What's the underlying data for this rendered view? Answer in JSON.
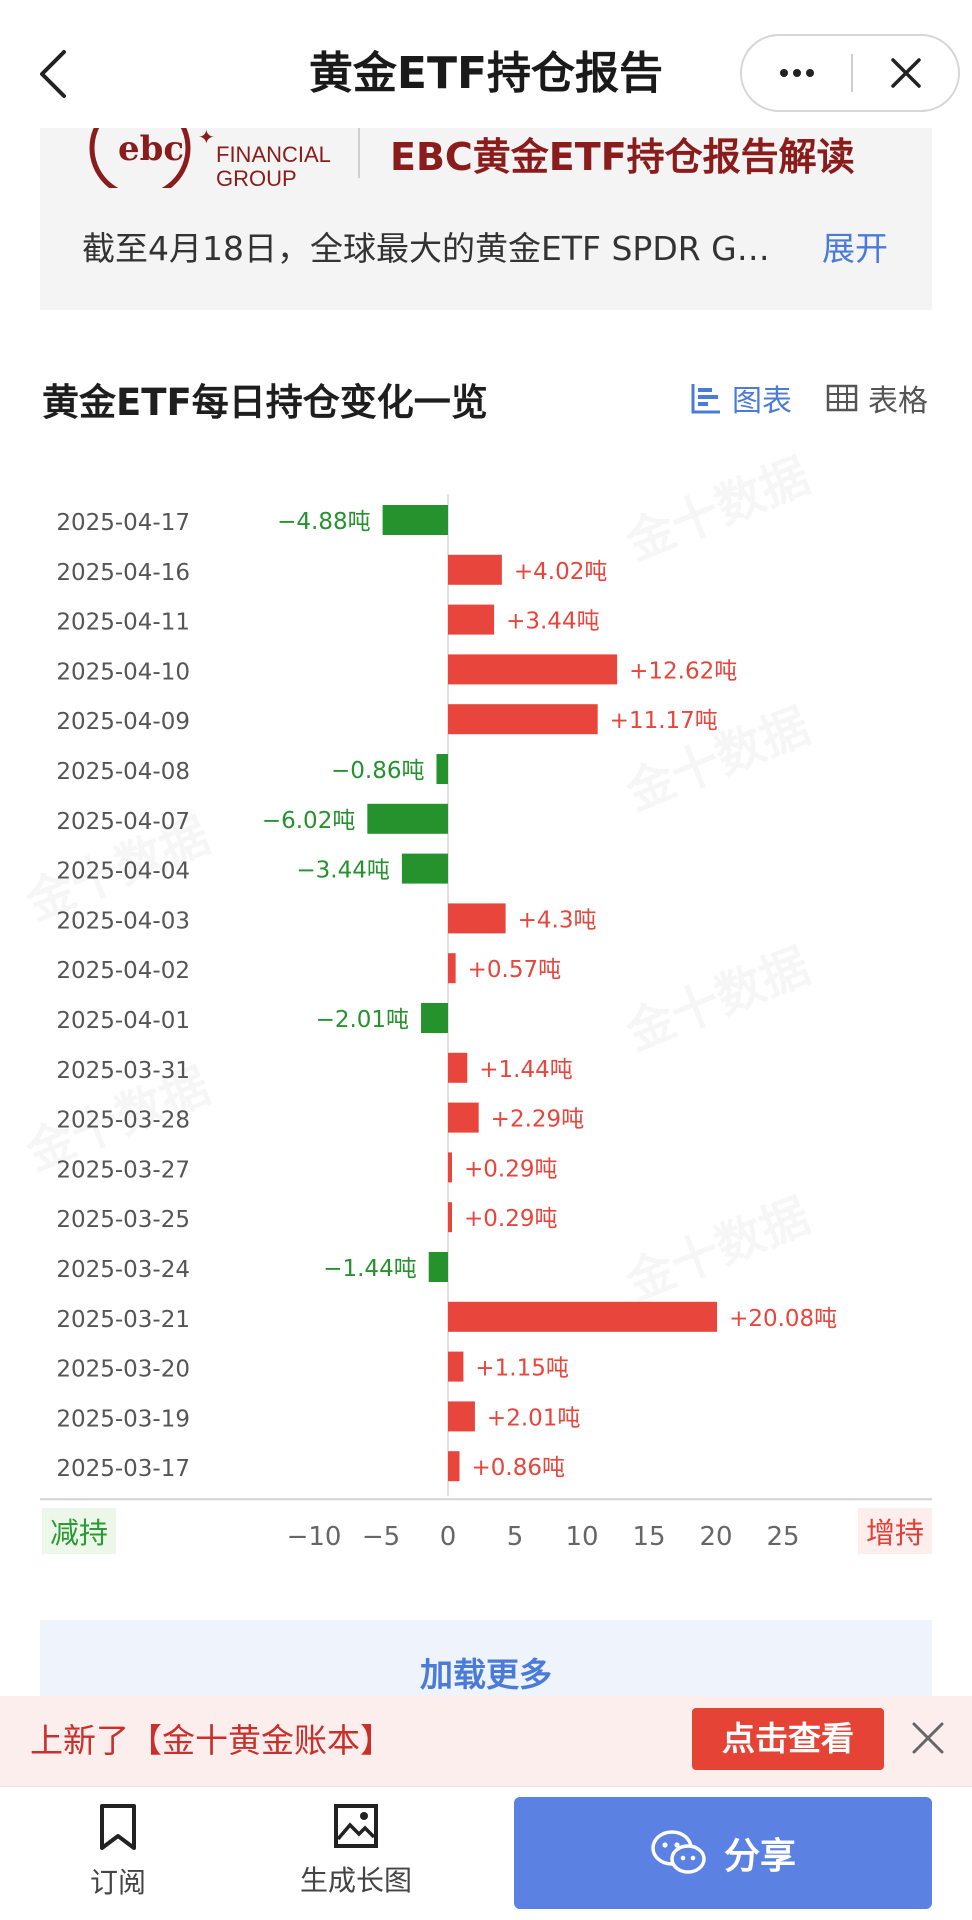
{
  "nav": {
    "title": "黄金ETF持仓报告"
  },
  "summary": {
    "logo_text_line1": "FINANCIAL",
    "logo_text_line2": "GROUP",
    "brand_title": "EBC黄金ETF持仓报告解读",
    "text": "截至4月18日，全球最大的黄金ETF SPDR G…",
    "expand_label": "展开"
  },
  "section": {
    "title": "黄金ETF每日持仓变化一览",
    "view_chart_label": "图表",
    "view_table_label": "表格"
  },
  "chart_data": {
    "type": "bar",
    "orientation": "horizontal",
    "categories": [
      "2025-04-17",
      "2025-04-16",
      "2025-04-11",
      "2025-04-10",
      "2025-04-09",
      "2025-04-08",
      "2025-04-07",
      "2025-04-04",
      "2025-04-03",
      "2025-04-02",
      "2025-04-01",
      "2025-03-31",
      "2025-03-28",
      "2025-03-27",
      "2025-03-25",
      "2025-03-24",
      "2025-03-21",
      "2025-03-20",
      "2025-03-19",
      "2025-03-17"
    ],
    "values": [
      -4.88,
      4.02,
      3.44,
      12.62,
      11.17,
      -0.86,
      -6.02,
      -3.44,
      4.3,
      0.57,
      -2.01,
      1.44,
      2.29,
      0.29,
      0.29,
      -1.44,
      20.08,
      1.15,
      2.01,
      0.86
    ],
    "labels": [
      "−4.88吨",
      "+4.02吨",
      "+3.44吨",
      "+12.62吨",
      "+11.17吨",
      "−0.86吨",
      "−6.02吨",
      "−3.44吨",
      "+4.3吨",
      "+0.57吨",
      "−2.01吨",
      "+1.44吨",
      "+2.29吨",
      "+0.29吨",
      "+0.29吨",
      "−1.44吨",
      "+20.08吨",
      "+1.15吨",
      "+2.01吨",
      "+0.86吨"
    ],
    "xticks": [
      "−10",
      "−5",
      "0",
      "5",
      "10",
      "15",
      "20",
      "25"
    ],
    "xtick_values": [
      -10,
      -5,
      0,
      5,
      10,
      15,
      20,
      25
    ],
    "xlim": [
      -10,
      25
    ],
    "legend_decrease": "减持",
    "legend_increase": "增持",
    "colors": {
      "increase": "#e8453c",
      "decrease": "#26922e",
      "axis": "#d4d4d4",
      "date": "#555555"
    }
  },
  "load_more_label": "加载更多",
  "promo": {
    "text": "上新了【金十黄金账本】",
    "button_label": "点击查看"
  },
  "bottom_bar": {
    "subscribe_label": "订阅",
    "long_image_label": "生成长图",
    "share_label": "分享"
  }
}
